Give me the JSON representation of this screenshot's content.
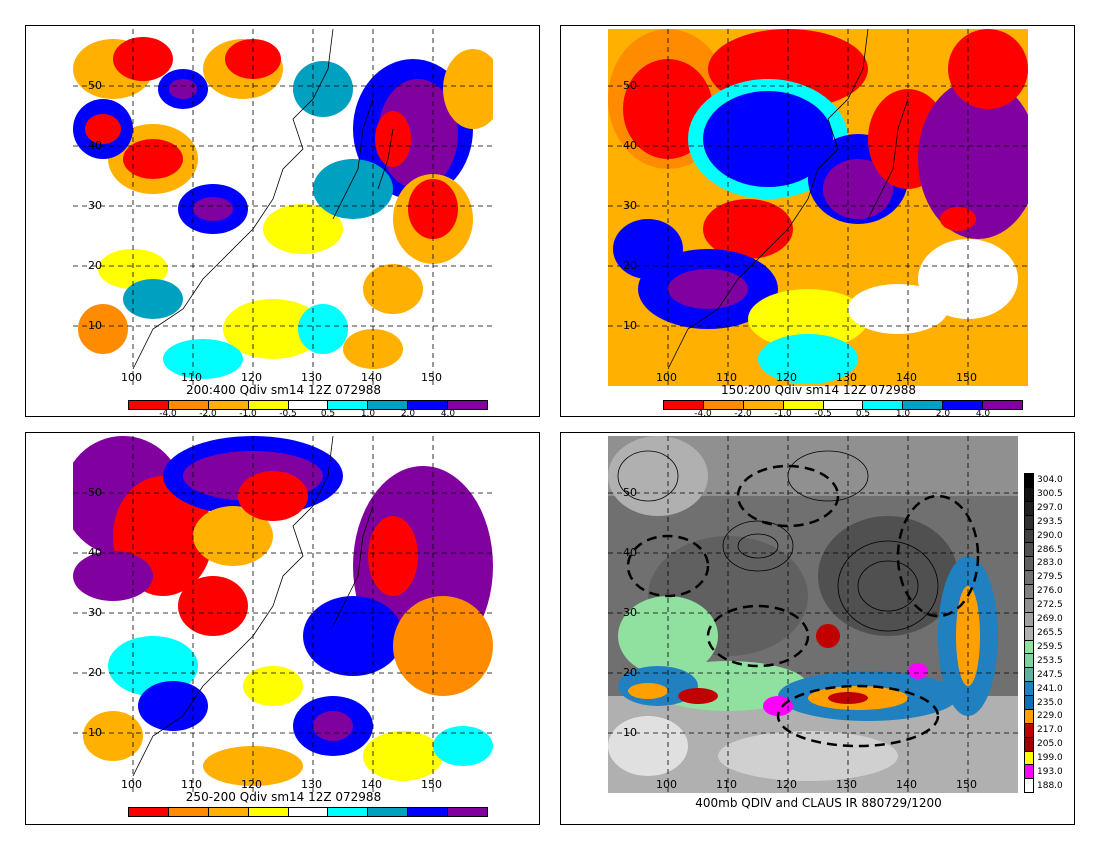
{
  "panels": [
    {
      "caption": "200:400 Qdiv sm14 12Z 072988",
      "lat_labels": [
        "50",
        "40",
        "30",
        "20",
        "10"
      ],
      "lon_labels": [
        "100",
        "110",
        "120",
        "130",
        "140",
        "150"
      ],
      "colorbar_labels": [
        "-4.0",
        "-2.0",
        "-1.0",
        "-0.5",
        "0.5",
        "1.0",
        "2.0",
        "4.0"
      ]
    },
    {
      "caption": "150:200 Qdiv sm14 12Z 072988",
      "lat_labels": [
        "50",
        "40",
        "30",
        "20",
        "10"
      ],
      "lon_labels": [
        "100",
        "110",
        "120",
        "130",
        "140",
        "150"
      ],
      "colorbar_labels": [
        "-4.0",
        "-2.0",
        "-1.0",
        "-0.5",
        "0.5",
        "1.0",
        "2.0",
        "4.0"
      ]
    },
    {
      "caption": "250-200 Qdiv sm14 12Z 072988",
      "lat_labels": [
        "50",
        "40",
        "30",
        "20",
        "10"
      ],
      "lon_labels": [
        "100",
        "110",
        "120",
        "130",
        "140",
        "150"
      ],
      "colorbar_labels": []
    },
    {
      "caption": "400mb QDIV and CLAUS IR 880729/1200",
      "lat_labels": [
        "50",
        "40",
        "30",
        "20",
        "10"
      ],
      "lon_labels": [
        "100",
        "110",
        "120",
        "130",
        "140",
        "150"
      ],
      "ir_scale_labels": [
        "304.0",
        "300.5",
        "297.0",
        "293.5",
        "290.0",
        "286.5",
        "283.0",
        "279.5",
        "276.0",
        "272.5",
        "269.0",
        "265.5",
        "259.5",
        "253.5",
        "247.5",
        "241.0",
        "235.0",
        "229.0",
        "217.0",
        "205.0",
        "199.0",
        "193.0",
        "188.0"
      ]
    }
  ],
  "colors": {
    "qdiv_scale": [
      "#ff0000",
      "#ff8c00",
      "#ffb000",
      "#ffff00",
      "#ffffff",
      "#00ffff",
      "#00a0c0",
      "#0000ff",
      "#8000a0"
    ],
    "ir_scale": [
      "#000000",
      "#101010",
      "#202020",
      "#303030",
      "#404040",
      "#505050",
      "#606060",
      "#707070",
      "#808080",
      "#909090",
      "#a0a0a0",
      "#b0b0b0",
      "#90e0a0",
      "#80d0a0",
      "#60b0a0",
      "#2080c0",
      "#1070b0",
      "#ffa000",
      "#c00000",
      "#a00000",
      "#ffff00",
      "#ff00ff",
      "#ffffff"
    ]
  }
}
